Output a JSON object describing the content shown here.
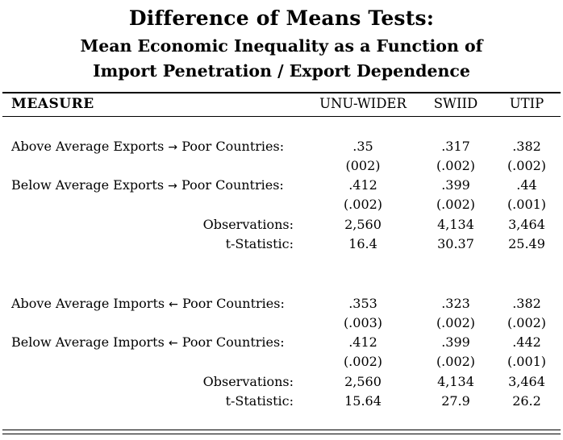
{
  "title": {
    "main": "Difference of Means Tests:",
    "line1": "Mean Economic Inequality as a Function of",
    "line2": "Import Penetration / Export Dependence"
  },
  "header": {
    "measure": "MEASURE",
    "col1": "UNU-WIDER",
    "col2": "SWIID",
    "col3": "UTIP"
  },
  "exports": {
    "above": {
      "label_pre": "Above Average Exports",
      "arrow": "→",
      "label_post": "Poor Countries:",
      "v1": ".35",
      "v2": ".317",
      "v3": ".382",
      "se1": "(002)",
      "se2": "(.002)",
      "se3": "(.002)"
    },
    "below": {
      "label_pre": "Below Average Exports",
      "arrow": "→",
      "label_post": "Poor Countries:",
      "v1": ".412",
      "v2": ".399",
      "v3": ".44",
      "se1": "(.002)",
      "se2": "(.002)",
      "se3": "(.001)"
    },
    "observations": {
      "label": "Observations:",
      "v1": "2,560",
      "v2": "4,134",
      "v3": "3,464"
    },
    "tstat": {
      "label": "t-Statistic:",
      "v1": "16.4",
      "v2": "30.37",
      "v3": "25.49"
    }
  },
  "imports": {
    "above": {
      "label_pre": "Above Average Imports",
      "arrow": "←",
      "label_post": "Poor Countries:",
      "v1": ".353",
      "v2": ".323",
      "v3": ".382",
      "se1": "(.003)",
      "se2": "(.002)",
      "se3": "(.002)"
    },
    "below": {
      "label_pre": "Below Average Imports",
      "arrow": "←",
      "label_post": "Poor Countries:",
      "v1": ".412",
      "v2": ".399",
      "v3": ".442",
      "se1": "(.002)",
      "se2": "(.002)",
      "se3": "(.001)"
    },
    "observations": {
      "label": "Observations:",
      "v1": "2,560",
      "v2": "4,134",
      "v3": "3,464"
    },
    "tstat": {
      "label": "t-Statistic:",
      "v1": "15.64",
      "v2": "27.9",
      "v3": "26.2"
    }
  }
}
